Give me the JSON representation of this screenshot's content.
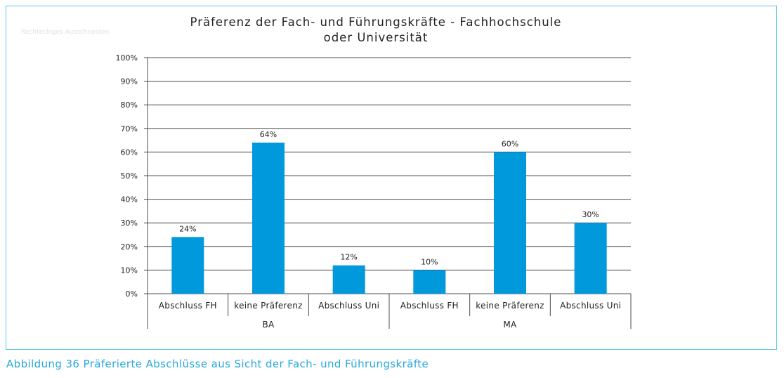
{
  "caption": "Abbildung 36 Präferierte Abschlüsse aus Sicht der Fach- und Führungskräfte",
  "faint_label": "Rechteckiges Ausschneiden",
  "colors": {
    "bar": "#0099dc",
    "frame": "#5bc8e6",
    "caption": "#27a9dc",
    "grid": "#4d4d4d"
  },
  "chart_data": {
    "type": "bar",
    "title_lines": [
      "Präferenz der Fach- und Führungskräfte - Fachhochschule",
      "oder Universität"
    ],
    "groups": [
      "BA",
      "MA"
    ],
    "categories": [
      "Abschluss FH",
      "keine Präferenz",
      "Abschluss Uni",
      "Abschluss FH",
      "keine Präferenz",
      "Abschluss Uni"
    ],
    "values": [
      24,
      64,
      12,
      10,
      60,
      30
    ],
    "value_labels": [
      "24%",
      "64%",
      "12%",
      "10%",
      "60%",
      "30%"
    ],
    "ylim": [
      0,
      100
    ],
    "yticks": [
      0,
      10,
      20,
      30,
      40,
      50,
      60,
      70,
      80,
      90,
      100
    ],
    "ytick_labels": [
      "0%",
      "10%",
      "20%",
      "30%",
      "40%",
      "50%",
      "60%",
      "70%",
      "80%",
      "90%",
      "100%"
    ],
    "grid": true,
    "legend": "none"
  }
}
